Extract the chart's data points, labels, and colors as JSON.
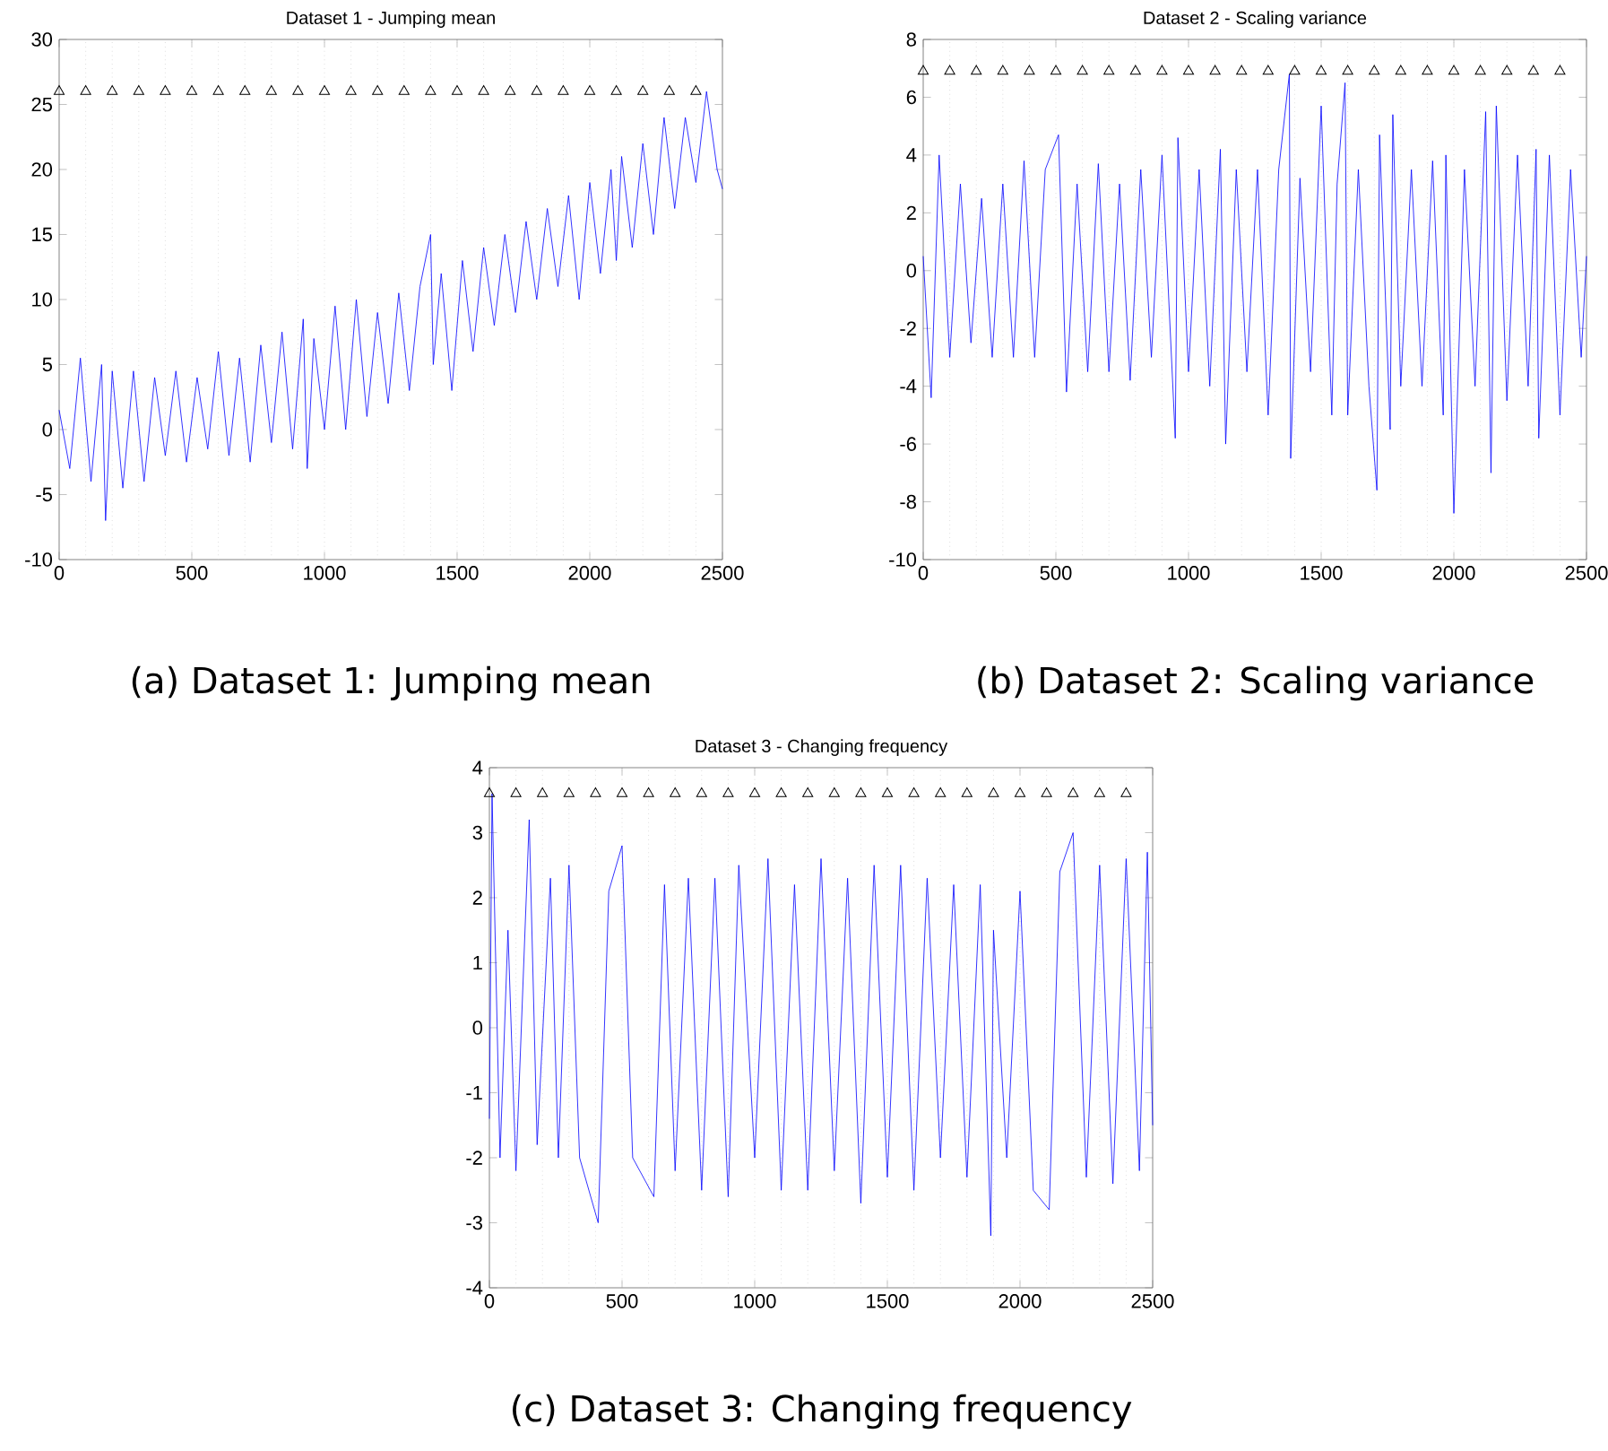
{
  "chart_data": [
    {
      "type": "line",
      "title": "Dataset 1 - Jumping mean",
      "annotations": [
        "(a) Dataset 1: Jumping mean"
      ],
      "xlim": [
        0,
        2500
      ],
      "xticks": [
        0,
        500,
        1000,
        1500,
        2000,
        2500
      ],
      "ylim": [
        -10,
        30
      ],
      "yticks": [
        -10,
        -5,
        0,
        5,
        10,
        15,
        20,
        25,
        30
      ],
      "series": [
        {
          "color": "#0000ff",
          "x": [
            0,
            40,
            80,
            120,
            160,
            175,
            200,
            240,
            280,
            320,
            360,
            400,
            440,
            480,
            520,
            560,
            600,
            640,
            680,
            720,
            760,
            800,
            840,
            880,
            920,
            935,
            960,
            1000,
            1040,
            1080,
            1120,
            1160,
            1200,
            1240,
            1280,
            1320,
            1360,
            1400,
            1410,
            1440,
            1480,
            1520,
            1560,
            1600,
            1640,
            1680,
            1720,
            1760,
            1800,
            1840,
            1880,
            1920,
            1960,
            2000,
            2040,
            2080,
            2100,
            2120,
            2160,
            2200,
            2240,
            2280,
            2320,
            2360,
            2400,
            2440,
            2480,
            2500
          ],
          "values": [
            1.5,
            -3,
            5.5,
            -4,
            5,
            -7,
            4.5,
            -4.5,
            4.5,
            -4,
            4,
            -2,
            4.5,
            -2.5,
            4,
            -1.5,
            6,
            -2,
            5.5,
            -2.5,
            6.5,
            -1,
            7.5,
            -1.5,
            8.5,
            -3,
            7,
            0,
            9.5,
            0,
            10,
            1,
            9,
            2,
            10.5,
            3,
            11,
            15,
            5,
            12,
            3,
            13,
            6,
            14,
            8,
            15,
            9,
            16,
            10,
            17,
            11,
            18,
            10,
            19,
            12,
            20,
            13,
            21,
            14,
            22,
            15,
            24,
            17,
            24,
            19,
            26,
            20,
            18.5
          ]
        },
        {
          "type": "scatter",
          "marker": "triangle",
          "color": "#000000",
          "x": [
            0,
            100,
            200,
            300,
            400,
            500,
            600,
            700,
            800,
            900,
            1000,
            1100,
            1200,
            1300,
            1400,
            1500,
            1600,
            1700,
            1800,
            1900,
            2000,
            2100,
            2200,
            2300,
            2400
          ],
          "values": [
            26,
            26,
            26,
            26,
            26,
            26,
            26,
            26,
            26,
            26,
            26,
            26,
            26,
            26,
            26,
            26,
            26,
            26,
            26,
            26,
            26,
            26,
            26,
            26,
            26
          ]
        }
      ],
      "ref_lines": [
        {
          "axis": "x",
          "value": 100,
          "color": "#cccccc",
          "line_style": "dotted"
        },
        {
          "axis": "x",
          "value": 200,
          "color": "#cccccc",
          "line_style": "dotted"
        },
        {
          "axis": "x",
          "value": 300,
          "color": "#cccccc",
          "line_style": "dotted"
        },
        {
          "axis": "x",
          "value": 400,
          "color": "#cccccc",
          "line_style": "dotted"
        },
        {
          "axis": "x",
          "value": 500,
          "color": "#cccccc",
          "line_style": "dotted"
        },
        {
          "axis": "x",
          "value": 600,
          "color": "#cccccc",
          "line_style": "dotted"
        },
        {
          "axis": "x",
          "value": 700,
          "color": "#cccccc",
          "line_style": "dotted"
        },
        {
          "axis": "x",
          "value": 800,
          "color": "#cccccc",
          "line_style": "dotted"
        },
        {
          "axis": "x",
          "value": 900,
          "color": "#cccccc",
          "line_style": "dotted"
        },
        {
          "axis": "x",
          "value": 1000,
          "color": "#cccccc",
          "line_style": "dotted"
        },
        {
          "axis": "x",
          "value": 1100,
          "color": "#cccccc",
          "line_style": "dotted"
        },
        {
          "axis": "x",
          "value": 1200,
          "color": "#cccccc",
          "line_style": "dotted"
        },
        {
          "axis": "x",
          "value": 1300,
          "color": "#cccccc",
          "line_style": "dotted"
        },
        {
          "axis": "x",
          "value": 1400,
          "color": "#cccccc",
          "line_style": "dotted"
        },
        {
          "axis": "x",
          "value": 1500,
          "color": "#cccccc",
          "line_style": "dotted"
        },
        {
          "axis": "x",
          "value": 1600,
          "color": "#cccccc",
          "line_style": "dotted"
        },
        {
          "axis": "x",
          "value": 1700,
          "color": "#cccccc",
          "line_style": "dotted"
        },
        {
          "axis": "x",
          "value": 1800,
          "color": "#cccccc",
          "line_style": "dotted"
        },
        {
          "axis": "x",
          "value": 1900,
          "color": "#cccccc",
          "line_style": "dotted"
        },
        {
          "axis": "x",
          "value": 2000,
          "color": "#cccccc",
          "line_style": "dotted"
        },
        {
          "axis": "x",
          "value": 2100,
          "color": "#cccccc",
          "line_style": "dotted"
        },
        {
          "axis": "x",
          "value": 2200,
          "color": "#cccccc",
          "line_style": "dotted"
        },
        {
          "axis": "x",
          "value": 2300,
          "color": "#cccccc",
          "line_style": "dotted"
        },
        {
          "axis": "x",
          "value": 2400,
          "color": "#cccccc",
          "line_style": "dotted"
        }
      ]
    },
    {
      "type": "line",
      "title": "Dataset 2 - Scaling variance",
      "annotations": [
        "(b) Dataset 2: Scaling variance"
      ],
      "xlim": [
        0,
        2500
      ],
      "xticks": [
        0,
        500,
        1000,
        1500,
        2000,
        2500
      ],
      "ylim": [
        -10,
        8
      ],
      "yticks": [
        -10,
        -8,
        -6,
        -4,
        -2,
        0,
        2,
        4,
        6,
        8
      ],
      "series": [
        {
          "color": "#0000ff",
          "x": [
            0,
            30,
            60,
            100,
            140,
            180,
            220,
            260,
            300,
            340,
            380,
            420,
            460,
            510,
            540,
            580,
            620,
            660,
            700,
            740,
            780,
            820,
            860,
            900,
            950,
            960,
            1000,
            1040,
            1080,
            1120,
            1140,
            1180,
            1220,
            1260,
            1300,
            1340,
            1380,
            1385,
            1420,
            1460,
            1500,
            1540,
            1560,
            1590,
            1600,
            1640,
            1680,
            1710,
            1720,
            1760,
            1770,
            1800,
            1840,
            1880,
            1920,
            1960,
            1970,
            2000,
            2040,
            2080,
            2120,
            2140,
            2160,
            2200,
            2240,
            2280,
            2310,
            2320,
            2360,
            2400,
            2440,
            2480,
            2500
          ],
          "values": [
            0.5,
            -4.4,
            4,
            -3,
            3,
            -2.5,
            2.5,
            -3,
            3,
            -3,
            3.8,
            -3,
            3.5,
            4.7,
            -4.2,
            3,
            -3.5,
            3.7,
            -3.5,
            3,
            -3.8,
            3.5,
            -3,
            4,
            -5.8,
            4.6,
            -3.5,
            3.5,
            -4,
            4.2,
            -6,
            3.5,
            -3.5,
            3.5,
            -5,
            3.5,
            6.8,
            -6.5,
            3.2,
            -3.5,
            5.7,
            -5,
            3,
            6.5,
            -5,
            3.5,
            -4,
            -7.6,
            4.7,
            -5.5,
            5.4,
            -4,
            3.5,
            -4,
            3.8,
            -5,
            4,
            -8.4,
            3.5,
            -4,
            5.5,
            -7,
            5.7,
            -4.5,
            4,
            -4,
            4.2,
            -5.8,
            4,
            -5,
            3.5,
            -3,
            0.5
          ]
        },
        {
          "type": "scatter",
          "marker": "triangle",
          "color": "#000000",
          "x": [
            0,
            100,
            200,
            300,
            400,
            500,
            600,
            700,
            800,
            900,
            1000,
            1100,
            1200,
            1300,
            1400,
            1500,
            1600,
            1700,
            1800,
            1900,
            2000,
            2100,
            2200,
            2300,
            2400
          ],
          "values": [
            6.9,
            6.9,
            6.9,
            6.9,
            6.9,
            6.9,
            6.9,
            6.9,
            6.9,
            6.9,
            6.9,
            6.9,
            6.9,
            6.9,
            6.9,
            6.9,
            6.9,
            6.9,
            6.9,
            6.9,
            6.9,
            6.9,
            6.9,
            6.9,
            6.9
          ]
        }
      ],
      "ref_lines": [
        {
          "axis": "x",
          "value": 100,
          "color": "#cccccc",
          "line_style": "dotted"
        },
        {
          "axis": "x",
          "value": 200,
          "color": "#cccccc",
          "line_style": "dotted"
        },
        {
          "axis": "x",
          "value": 300,
          "color": "#cccccc",
          "line_style": "dotted"
        },
        {
          "axis": "x",
          "value": 400,
          "color": "#cccccc",
          "line_style": "dotted"
        },
        {
          "axis": "x",
          "value": 500,
          "color": "#cccccc",
          "line_style": "dotted"
        },
        {
          "axis": "x",
          "value": 600,
          "color": "#cccccc",
          "line_style": "dotted"
        },
        {
          "axis": "x",
          "value": 700,
          "color": "#cccccc",
          "line_style": "dotted"
        },
        {
          "axis": "x",
          "value": 800,
          "color": "#cccccc",
          "line_style": "dotted"
        },
        {
          "axis": "x",
          "value": 900,
          "color": "#cccccc",
          "line_style": "dotted"
        },
        {
          "axis": "x",
          "value": 1000,
          "color": "#cccccc",
          "line_style": "dotted"
        },
        {
          "axis": "x",
          "value": 1100,
          "color": "#cccccc",
          "line_style": "dotted"
        },
        {
          "axis": "x",
          "value": 1200,
          "color": "#cccccc",
          "line_style": "dotted"
        },
        {
          "axis": "x",
          "value": 1300,
          "color": "#cccccc",
          "line_style": "dotted"
        },
        {
          "axis": "x",
          "value": 1400,
          "color": "#cccccc",
          "line_style": "dotted"
        },
        {
          "axis": "x",
          "value": 1500,
          "color": "#cccccc",
          "line_style": "dotted"
        },
        {
          "axis": "x",
          "value": 1600,
          "color": "#cccccc",
          "line_style": "dotted"
        },
        {
          "axis": "x",
          "value": 1700,
          "color": "#cccccc",
          "line_style": "dotted"
        },
        {
          "axis": "x",
          "value": 1800,
          "color": "#cccccc",
          "line_style": "dotted"
        },
        {
          "axis": "x",
          "value": 1900,
          "color": "#cccccc",
          "line_style": "dotted"
        },
        {
          "axis": "x",
          "value": 2000,
          "color": "#cccccc",
          "line_style": "dotted"
        },
        {
          "axis": "x",
          "value": 2100,
          "color": "#cccccc",
          "line_style": "dotted"
        },
        {
          "axis": "x",
          "value": 2200,
          "color": "#cccccc",
          "line_style": "dotted"
        },
        {
          "axis": "x",
          "value": 2300,
          "color": "#cccccc",
          "line_style": "dotted"
        },
        {
          "axis": "x",
          "value": 2400,
          "color": "#cccccc",
          "line_style": "dotted"
        }
      ]
    },
    {
      "type": "line",
      "title": "Dataset 3 - Changing frequency",
      "annotations": [
        "(c) Dataset 3: Changing frequency"
      ],
      "xlim": [
        0,
        2500
      ],
      "xticks": [
        0,
        500,
        1000,
        1500,
        2000,
        2500
      ],
      "ylim": [
        -4,
        4
      ],
      "yticks": [
        -4,
        -3,
        -2,
        -1,
        0,
        1,
        2,
        3,
        4
      ],
      "series": [
        {
          "color": "#0000ff",
          "x": [
            0,
            10,
            40,
            70,
            100,
            150,
            180,
            230,
            260,
            300,
            340,
            410,
            450,
            500,
            540,
            620,
            660,
            700,
            750,
            800,
            850,
            900,
            940,
            1000,
            1050,
            1100,
            1150,
            1200,
            1250,
            1300,
            1350,
            1400,
            1450,
            1500,
            1550,
            1600,
            1650,
            1700,
            1750,
            1800,
            1850,
            1890,
            1900,
            1950,
            2000,
            2050,
            2110,
            2150,
            2200,
            2250,
            2300,
            2350,
            2400,
            2450,
            2480,
            2500
          ],
          "values": [
            -1.4,
            3.6,
            -2,
            1.5,
            -2.2,
            3.2,
            -1.8,
            2.3,
            -2,
            2.5,
            -2,
            -3,
            2.1,
            2.8,
            -2,
            -2.6,
            2.2,
            -2.2,
            2.3,
            -2.5,
            2.3,
            -2.6,
            2.5,
            -2,
            2.6,
            -2.5,
            2.2,
            -2.5,
            2.6,
            -2.2,
            2.3,
            -2.7,
            2.5,
            -2.3,
            2.5,
            -2.5,
            2.3,
            -2,
            2.2,
            -2.3,
            2.2,
            -3.2,
            1.5,
            -2,
            2.1,
            -2.5,
            -2.8,
            2.4,
            3,
            -2.3,
            2.5,
            -2.4,
            2.6,
            -2.2,
            2.7,
            -1.5
          ]
        },
        {
          "type": "scatter",
          "marker": "triangle",
          "color": "#000000",
          "x": [
            0,
            100,
            200,
            300,
            400,
            500,
            600,
            700,
            800,
            900,
            1000,
            1100,
            1200,
            1300,
            1400,
            1500,
            1600,
            1700,
            1800,
            1900,
            2000,
            2100,
            2200,
            2300,
            2400
          ],
          "values": [
            3.6,
            3.6,
            3.6,
            3.6,
            3.6,
            3.6,
            3.6,
            3.6,
            3.6,
            3.6,
            3.6,
            3.6,
            3.6,
            3.6,
            3.6,
            3.6,
            3.6,
            3.6,
            3.6,
            3.6,
            3.6,
            3.6,
            3.6,
            3.6,
            3.6
          ]
        }
      ],
      "ref_lines": [
        {
          "axis": "x",
          "value": 100,
          "color": "#cccccc",
          "line_style": "dotted"
        },
        {
          "axis": "x",
          "value": 200,
          "color": "#cccccc",
          "line_style": "dotted"
        },
        {
          "axis": "x",
          "value": 300,
          "color": "#cccccc",
          "line_style": "dotted"
        },
        {
          "axis": "x",
          "value": 400,
          "color": "#cccccc",
          "line_style": "dotted"
        },
        {
          "axis": "x",
          "value": 500,
          "color": "#cccccc",
          "line_style": "dotted"
        },
        {
          "axis": "x",
          "value": 600,
          "color": "#cccccc",
          "line_style": "dotted"
        },
        {
          "axis": "x",
          "value": 700,
          "color": "#cccccc",
          "line_style": "dotted"
        },
        {
          "axis": "x",
          "value": 800,
          "color": "#cccccc",
          "line_style": "dotted"
        },
        {
          "axis": "x",
          "value": 900,
          "color": "#cccccc",
          "line_style": "dotted"
        },
        {
          "axis": "x",
          "value": 1000,
          "color": "#cccccc",
          "line_style": "dotted"
        },
        {
          "axis": "x",
          "value": 1100,
          "color": "#cccccc",
          "line_style": "dotted"
        },
        {
          "axis": "x",
          "value": 1200,
          "color": "#cccccc",
          "line_style": "dotted"
        },
        {
          "axis": "x",
          "value": 1300,
          "color": "#cccccc",
          "line_style": "dotted"
        },
        {
          "axis": "x",
          "value": 1400,
          "color": "#cccccc",
          "line_style": "dotted"
        },
        {
          "axis": "x",
          "value": 1500,
          "color": "#cccccc",
          "line_style": "dotted"
        },
        {
          "axis": "x",
          "value": 1600,
          "color": "#cccccc",
          "line_style": "dotted"
        },
        {
          "axis": "x",
          "value": 1700,
          "color": "#cccccc",
          "line_style": "dotted"
        },
        {
          "axis": "x",
          "value": 1800,
          "color": "#cccccc",
          "line_style": "dotted"
        },
        {
          "axis": "x",
          "value": 1900,
          "color": "#cccccc",
          "line_style": "dotted"
        },
        {
          "axis": "x",
          "value": 2000,
          "color": "#cccccc",
          "line_style": "dotted"
        },
        {
          "axis": "x",
          "value": 2100,
          "color": "#cccccc",
          "line_style": "dotted"
        },
        {
          "axis": "x",
          "value": 2200,
          "color": "#cccccc",
          "line_style": "dotted"
        },
        {
          "axis": "x",
          "value": 2300,
          "color": "#cccccc",
          "line_style": "dotted"
        },
        {
          "axis": "x",
          "value": 2400,
          "color": "#cccccc",
          "line_style": "dotted"
        }
      ]
    }
  ]
}
